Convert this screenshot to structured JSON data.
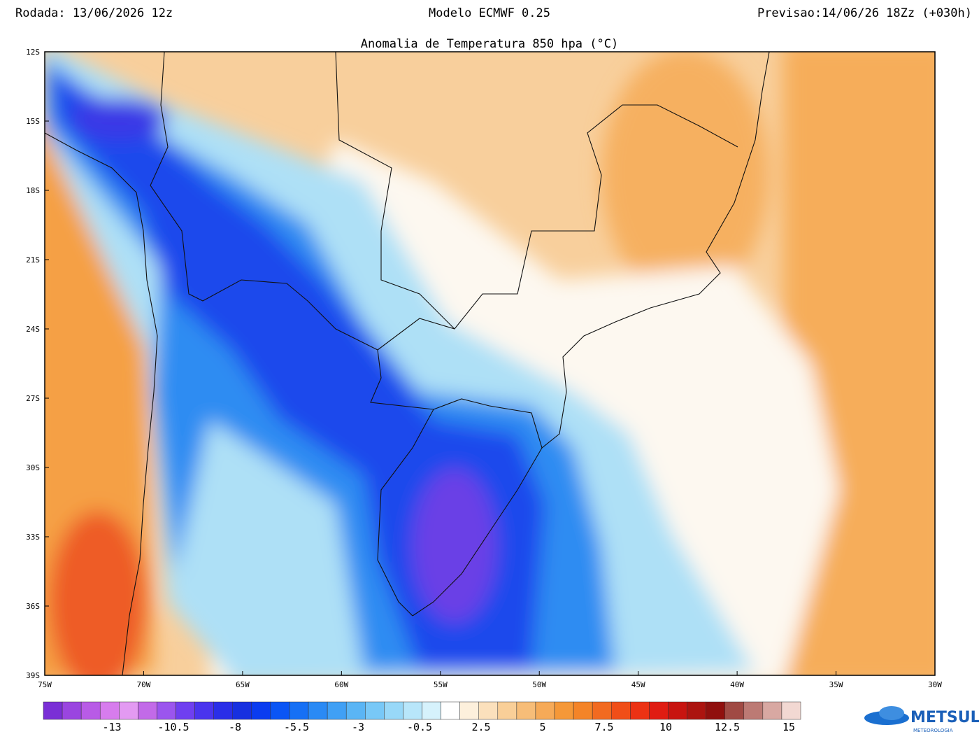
{
  "header": {
    "run": "Rodada: 13/06/2026 12z",
    "model": "Modelo ECMWF 0.25",
    "forecast": "Previsao:14/06/26 18Zz (+030h)",
    "title": "Anomalia de Temperatura 850 hpa (°C)"
  },
  "map": {
    "lat_labels": [
      "12S",
      "15S",
      "18S",
      "21S",
      "24S",
      "27S",
      "30S",
      "33S",
      "36S",
      "39S"
    ],
    "lon_labels": [
      "75W",
      "70W",
      "65W",
      "60W",
      "55W",
      "50W",
      "45W",
      "40W",
      "35W",
      "30W"
    ]
  },
  "colorbar": {
    "labels": [
      "-13",
      "-10.5",
      "-8",
      "-5.5",
      "-3",
      "-0.5",
      "2.5",
      "5",
      "7.5",
      "10",
      "12.5",
      "15"
    ],
    "colors": [
      "#7a2fd6",
      "#9a45e0",
      "#b85be6",
      "#d77ced",
      "#e39af2",
      "#c26ae8",
      "#9b55ee",
      "#6f3ff0",
      "#4a34ee",
      "#2a2ee8",
      "#1730e0",
      "#0a3cf0",
      "#0a55f5",
      "#1670f5",
      "#2a8af5",
      "#40a0f5",
      "#5ab5f5",
      "#78c8f7",
      "#98d8f8",
      "#b8e6fa",
      "#d6f2fc",
      "#ffffff",
      "#fdf0dc",
      "#fbe0bc",
      "#f9cf98",
      "#f7bd78",
      "#f6aa58",
      "#f59838",
      "#f48428",
      "#f26a20",
      "#f04e18",
      "#ec3214",
      "#e01c12",
      "#c81410",
      "#ac1410",
      "#90100e",
      "#a04a44",
      "#bc7a74",
      "#d8a8a2",
      "#f2d8d2"
    ]
  },
  "logo": {
    "name": "METSUL",
    "sub": "METEOROLOGIA"
  }
}
